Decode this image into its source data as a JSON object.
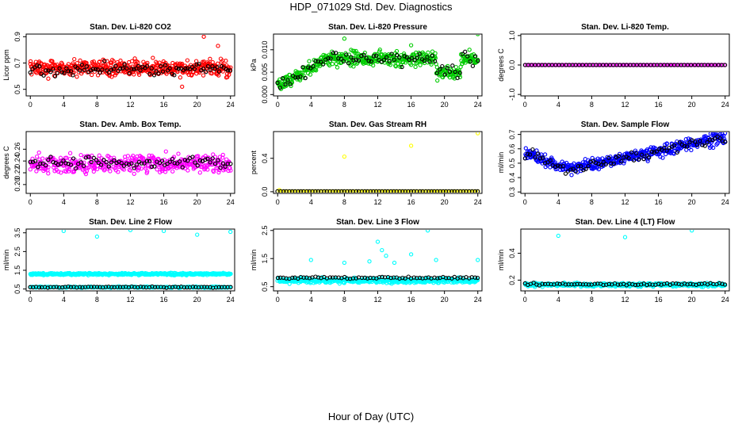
{
  "title": "HDP_071029  Std. Dev. Diagnostics",
  "x_caption": "Hour of Day (UTC)",
  "chart_data": [
    {
      "type": "scatter",
      "title": "Stan. Dev. Li-820 CO2",
      "ylabel": "Licor ppm",
      "xlim": [
        -0.5,
        24.5
      ],
      "ylim": [
        0.45,
        0.92
      ],
      "xticks": [
        "0",
        "4",
        "8",
        "12",
        "16",
        "20",
        "24"
      ],
      "yticks": [
        {
          "v": 0.5,
          "t": "0.5"
        },
        {
          "v": 0.7,
          "t": "0.7"
        },
        {
          "v": 0.9,
          "t": "0.9"
        }
      ],
      "series": [
        {
          "color": "#ff0000",
          "gen": {
            "type": "flat",
            "n": 480,
            "base": 0.66,
            "spread": 0.09,
            "seed": 1
          },
          "values": [
            [
              20.8,
              0.9
            ],
            [
              22.5,
              0.83
            ],
            [
              18.2,
              0.52
            ]
          ]
        },
        {
          "color": "#000000",
          "gen": {
            "type": "flat",
            "n": 90,
            "base": 0.65,
            "spread": 0.07,
            "seed": 2
          }
        }
      ]
    },
    {
      "type": "scatter",
      "title": "Stan. Dev. Li-820 Pressure",
      "ylabel": "kPa",
      "xlim": [
        -0.5,
        24.5
      ],
      "ylim": [
        -0.0003,
        0.0135
      ],
      "xticks": [
        "0",
        "4",
        "8",
        "12",
        "16",
        "20",
        "24"
      ],
      "yticks": [
        {
          "v": 0.0,
          "t": "0.000"
        },
        {
          "v": 0.005,
          "t": "0.005"
        },
        {
          "v": 0.01,
          "t": "0.010"
        }
      ],
      "series": [
        {
          "color": "#00cc00",
          "gen": {
            "type": "pressure",
            "n": 480,
            "seed": 3
          },
          "values": [
            [
              8,
              0.0125
            ],
            [
              16,
              0.011
            ],
            [
              24,
              0.0135
            ],
            [
              23,
              0.01
            ],
            [
              22,
              0.009
            ]
          ]
        },
        {
          "color": "#000000",
          "gen": {
            "type": "pressure",
            "n": 80,
            "seed": 4
          }
        }
      ]
    },
    {
      "type": "scatter",
      "title": "Stan. Dev. Li-820 Temp.",
      "ylabel": "degrees C",
      "xlim": [
        -0.5,
        24.5
      ],
      "ylim": [
        -1.05,
        1.05
      ],
      "xticks": [
        "0",
        "4",
        "8",
        "12",
        "16",
        "20",
        "24"
      ],
      "yticks": [
        {
          "v": -1.0,
          "t": "-1.0"
        },
        {
          "v": 0.0,
          "t": "0.0"
        },
        {
          "v": 1.0,
          "t": "1.0"
        }
      ],
      "series": [
        {
          "color": "#ff00ff",
          "gen": {
            "type": "line",
            "n": 110,
            "base": 0.0,
            "seed": 5
          }
        },
        {
          "color": "#000000",
          "gen": {
            "type": "line",
            "n": 60,
            "base": 0.0,
            "seed": 6
          }
        }
      ]
    },
    {
      "type": "scatter",
      "title": "Stan. Dev. Amb. Box Temp.",
      "ylabel": "degrees C",
      "xlim": [
        -0.5,
        24.5
      ],
      "ylim": [
        0.185,
        0.29
      ],
      "xticks": [
        "0",
        "4",
        "8",
        "12",
        "16",
        "20",
        "24"
      ],
      "yticks": [
        {
          "v": 0.2,
          "t": "0.20"
        },
        {
          "v": 0.22,
          "t": "0.22"
        },
        {
          "v": 0.24,
          "t": "0.24"
        },
        {
          "v": 0.26,
          "t": "0.26"
        }
      ],
      "series": [
        {
          "color": "#ff00ff",
          "gen": {
            "type": "flat",
            "n": 420,
            "base": 0.236,
            "spread": 0.022,
            "seed": 7
          }
        },
        {
          "color": "#000000",
          "gen": {
            "type": "flat",
            "n": 80,
            "base": 0.236,
            "spread": 0.015,
            "seed": 8
          }
        }
      ]
    },
    {
      "type": "scatter",
      "title": "Stan. Dev. Gas Stream RH",
      "ylabel": "percent",
      "xlim": [
        -0.5,
        24.5
      ],
      "ylim": [
        -0.02,
        0.72
      ],
      "xticks": [
        "0",
        "4",
        "8",
        "12",
        "16",
        "20",
        "24"
      ],
      "yticks": [
        {
          "v": 0.0,
          "t": "0.0"
        },
        {
          "v": 0.4,
          "t": "0.4"
        }
      ],
      "series": [
        {
          "color": "#ffff00",
          "gen": {
            "type": "line",
            "n": 100,
            "base": 0.005,
            "seed": 9
          },
          "values": [
            [
              8,
              0.42
            ],
            [
              16,
              0.55
            ],
            [
              24,
              0.7
            ],
            [
              0.2,
              0.02
            ]
          ]
        },
        {
          "color": "#000000",
          "gen": {
            "type": "line",
            "n": 70,
            "base": 0.005,
            "seed": 10
          }
        }
      ]
    },
    {
      "type": "scatter",
      "title": "Stan. Dev. Sample Flow",
      "ylabel": "ml/min",
      "xlim": [
        -0.5,
        24.5
      ],
      "ylim": [
        0.29,
        0.72
      ],
      "xticks": [
        "0",
        "4",
        "8",
        "12",
        "16",
        "20",
        "24"
      ],
      "yticks": [
        {
          "v": 0.3,
          "t": "0.3"
        },
        {
          "v": 0.4,
          "t": "0.4"
        },
        {
          "v": 0.5,
          "t": "0.5"
        },
        {
          "v": 0.6,
          "t": "0.6"
        },
        {
          "v": 0.7,
          "t": "0.7"
        }
      ],
      "series": [
        {
          "color": "#0000ff",
          "gen": {
            "type": "sample",
            "n": 460,
            "seed": 11
          }
        },
        {
          "color": "#000000",
          "gen": {
            "type": "sample",
            "n": 80,
            "seed": 12
          }
        }
      ]
    },
    {
      "type": "scatter",
      "title": "Stan. Dev. Line 2 Flow",
      "ylabel": "ml/min",
      "xlim": [
        -0.5,
        24.5
      ],
      "ylim": [
        0.4,
        3.7
      ],
      "xticks": [
        "0",
        "4",
        "8",
        "12",
        "16",
        "20",
        "24"
      ],
      "yticks": [
        {
          "v": 0.5,
          "t": "0.5"
        },
        {
          "v": 1.5,
          "t": "1.5"
        },
        {
          "v": 2.5,
          "t": "2.5"
        },
        {
          "v": 3.5,
          "t": "3.5"
        }
      ],
      "series": [
        {
          "color": "#00ffff",
          "gen": {
            "type": "flat",
            "n": 420,
            "base": 1.3,
            "spread": 0.08,
            "seed": 13
          },
          "values": [
            [
              4,
              3.6
            ],
            [
              8,
              3.3
            ],
            [
              12,
              3.65
            ],
            [
              16,
              3.6
            ],
            [
              20,
              3.4
            ],
            [
              24,
              3.55
            ]
          ]
        },
        {
          "color": "#00ffff",
          "gen": {
            "type": "flat",
            "n": 200,
            "base": 0.6,
            "spread": 0.05,
            "seed": 14
          }
        },
        {
          "color": "#000000",
          "gen": {
            "type": "flat",
            "n": 70,
            "base": 0.6,
            "spread": 0.04,
            "seed": 15
          }
        }
      ]
    },
    {
      "type": "scatter",
      "title": "Stan. Dev. Line 3 Flow",
      "ylabel": "ml/min",
      "xlim": [
        -0.5,
        24.5
      ],
      "ylim": [
        0.35,
        2.55
      ],
      "xticks": [
        "0",
        "4",
        "8",
        "12",
        "16",
        "20",
        "24"
      ],
      "yticks": [
        {
          "v": 0.5,
          "t": "0.5"
        },
        {
          "v": 1.5,
          "t": "1.5"
        },
        {
          "v": 2.5,
          "t": "2.5"
        }
      ],
      "series": [
        {
          "color": "#00ffff",
          "gen": {
            "type": "flat",
            "n": 480,
            "base": 0.72,
            "spread": 0.13,
            "seed": 16
          },
          "values": [
            [
              4,
              1.45
            ],
            [
              8,
              1.35
            ],
            [
              12,
              2.1
            ],
            [
              12.5,
              1.8
            ],
            [
              13,
              1.6
            ],
            [
              14,
              1.35
            ],
            [
              11,
              1.4
            ],
            [
              16,
              1.65
            ],
            [
              18,
              2.5
            ],
            [
              19,
              1.45
            ],
            [
              24,
              1.45
            ]
          ]
        },
        {
          "color": "#000000",
          "gen": {
            "type": "flat",
            "n": 70,
            "base": 0.82,
            "spread": 0.06,
            "seed": 17
          }
        }
      ]
    },
    {
      "type": "scatter",
      "title": "Stan. Dev. Line 4 (LT) Flow",
      "ylabel": "ml/min",
      "xlim": [
        -0.5,
        24.5
      ],
      "ylim": [
        0.12,
        0.58
      ],
      "xticks": [
        "0",
        "4",
        "8",
        "12",
        "16",
        "20",
        "24"
      ],
      "yticks": [
        {
          "v": 0.2,
          "t": "0.2"
        },
        {
          "v": 0.4,
          "t": "0.4"
        }
      ],
      "series": [
        {
          "color": "#00ffff",
          "gen": {
            "type": "flat",
            "n": 480,
            "base": 0.165,
            "spread": 0.018,
            "seed": 18
          },
          "values": [
            [
              4,
              0.53
            ],
            [
              12,
              0.52
            ],
            [
              20,
              0.57
            ]
          ]
        },
        {
          "color": "#000000",
          "gen": {
            "type": "flat",
            "n": 70,
            "base": 0.17,
            "spread": 0.012,
            "seed": 19
          }
        }
      ]
    }
  ]
}
